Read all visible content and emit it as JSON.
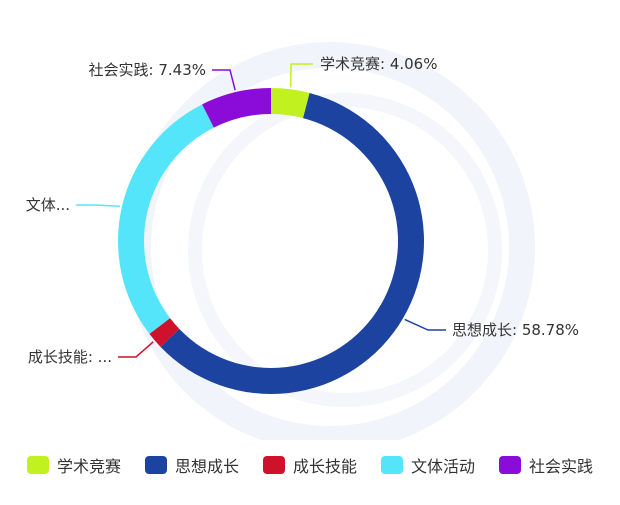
{
  "chart_data": {
    "type": "pie",
    "style": "donut",
    "title": "",
    "legend_position": "bottom",
    "slices": [
      {
        "name": "学术竞赛",
        "value": 4.06,
        "label": "学术竞赛: 4.06%",
        "color": "#c1f21f"
      },
      {
        "name": "思想成长",
        "value": 58.78,
        "label": "思想成长: 58.78%",
        "color": "#1d43a1"
      },
      {
        "name": "成长技能",
        "value": 1.78,
        "label": "成长技能: ...",
        "color": "#d0112b"
      },
      {
        "name": "文体活动",
        "value": 27.95,
        "label": "文体...",
        "color": "#55e5fb"
      },
      {
        "name": "社会实践",
        "value": 7.43,
        "label": "社会实践: 7.43%",
        "color": "#8b0bd9"
      }
    ]
  },
  "legend": {
    "items": [
      {
        "label": "学术竞赛",
        "color": "#c1f21f"
      },
      {
        "label": "思想成长",
        "color": "#1d43a1"
      },
      {
        "label": "成长技能",
        "color": "#d0112b"
      },
      {
        "label": "文体活动",
        "color": "#55e5fb"
      },
      {
        "label": "社会实践",
        "color": "#8b0bd9"
      }
    ]
  }
}
